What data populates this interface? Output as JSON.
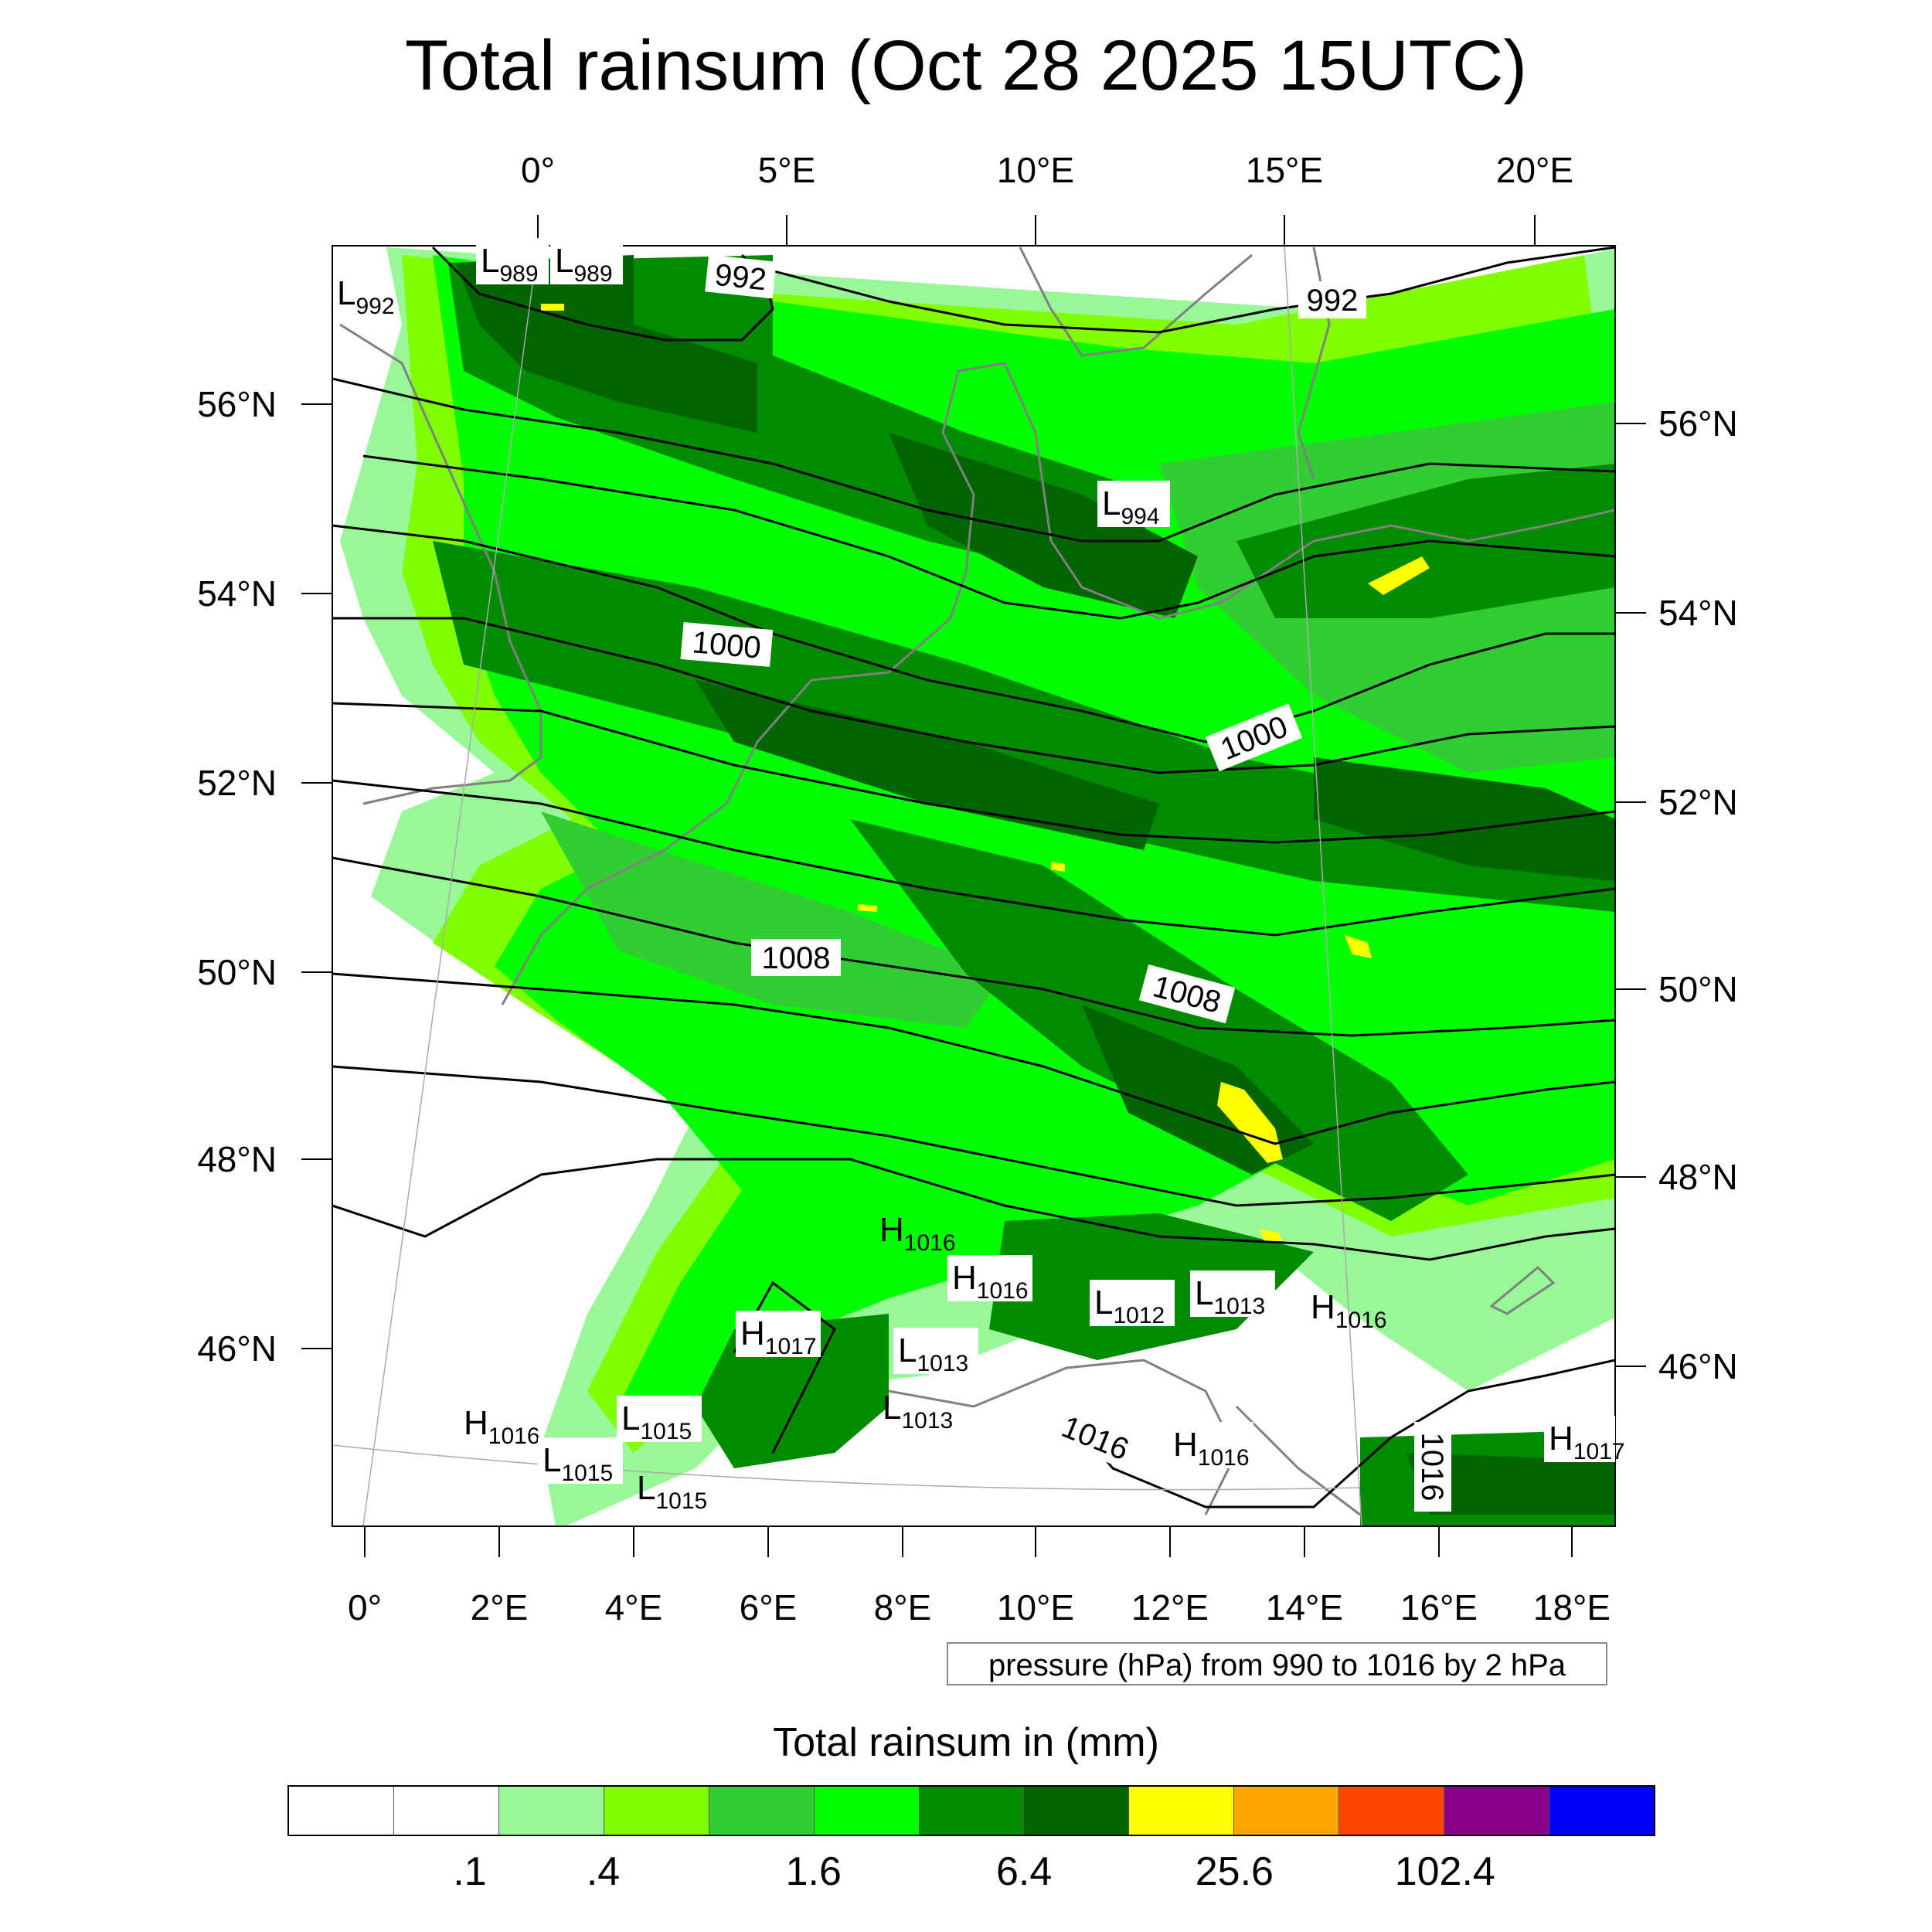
{
  "title": "Total rainsum (Oct 28 2025 15UTC)",
  "top_lon_labels": [
    "0°",
    "5°E",
    "10°E",
    "15°E",
    "20°E"
  ],
  "bottom_lon_labels": [
    "0°",
    "2°E",
    "4°E",
    "6°E",
    "8°E",
    "10°E",
    "12°E",
    "14°E",
    "16°E",
    "18°E"
  ],
  "left_lat_labels": [
    "56°N",
    "54°N",
    "52°N",
    "50°N",
    "48°N",
    "46°N"
  ],
  "right_lat_labels": [
    "56°N",
    "54°N",
    "52°N",
    "50°N",
    "48°N",
    "46°N"
  ],
  "contour_labels": [
    "992",
    "992",
    "1000",
    "1000",
    "1008",
    "1008",
    "1016",
    "1016"
  ],
  "pressure_centers": [
    {
      "kind": "L",
      "value": "992"
    },
    {
      "kind": "L",
      "value": "989"
    },
    {
      "kind": "L",
      "value": "989"
    },
    {
      "kind": "L",
      "value": "994"
    },
    {
      "kind": "H",
      "value": "1016"
    },
    {
      "kind": "H",
      "value": "1016"
    },
    {
      "kind": "L",
      "value": "1012"
    },
    {
      "kind": "L",
      "value": "1013"
    },
    {
      "kind": "H",
      "value": "1016"
    },
    {
      "kind": "H",
      "value": "1017"
    },
    {
      "kind": "L",
      "value": "1013"
    },
    {
      "kind": "L",
      "value": "1013"
    },
    {
      "kind": "H",
      "value": "1016"
    },
    {
      "kind": "L",
      "value": "1015"
    },
    {
      "kind": "L",
      "value": "1015"
    },
    {
      "kind": "L",
      "value": "1015"
    },
    {
      "kind": "H",
      "value": "1016"
    },
    {
      "kind": "H",
      "value": "1017"
    }
  ],
  "pressure_note": "pressure (hPa) from 990 to 1016 by 2 hPa",
  "colorbar": {
    "title": "Total rainsum in (mm)",
    "colors": [
      "#ffffff",
      "#ffffff",
      "#98f898",
      "#80ff00",
      "#32cd32",
      "#00ff00",
      "#008b00",
      "#006400",
      "#ffff00",
      "#ffa500",
      "#ff4500",
      "#8b008b",
      "#0000ff"
    ],
    "labels": [
      ".1",
      ".4",
      "1.6",
      "6.4",
      "25.6",
      "102.4"
    ]
  },
  "colors": {
    "light_green": "#98f898",
    "lime": "#80ff00",
    "medium_green": "#32cd32",
    "bright_green": "#00ff00",
    "green": "#008b00",
    "dark_green": "#006400",
    "yellow": "#ffff00",
    "coast": "#808080"
  }
}
